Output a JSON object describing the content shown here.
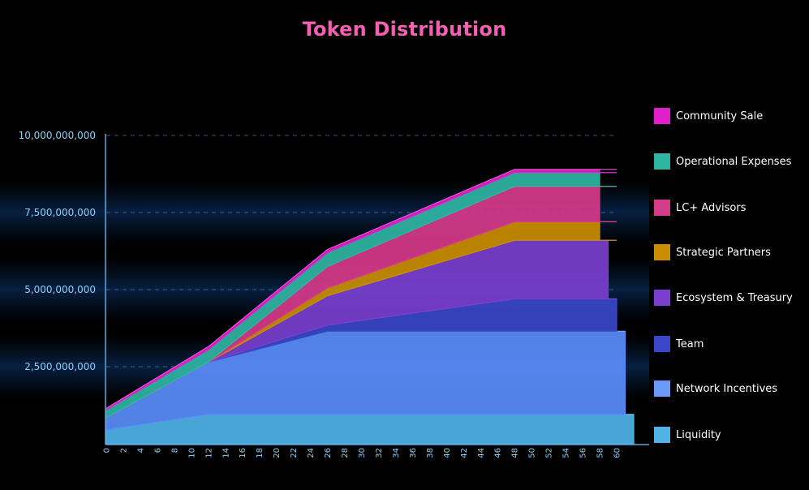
{
  "chart_data": {
    "type": "area",
    "stacked": true,
    "title": "Token Distribution",
    "xlabel": "",
    "ylabel": "",
    "ylim": [
      0,
      10000000000
    ],
    "xlim": [
      0,
      62
    ],
    "x_ticks": [
      0,
      2,
      4,
      6,
      8,
      10,
      12,
      14,
      16,
      18,
      20,
      22,
      24,
      26,
      28,
      30,
      32,
      34,
      36,
      38,
      40,
      42,
      44,
      46,
      48,
      50,
      52,
      54,
      56,
      58,
      60
    ],
    "y_ticks": [
      {
        "value": 2500000000,
        "label": "2,500,000,000"
      },
      {
        "value": 5000000000,
        "label": "5,000,000,000"
      },
      {
        "value": 7500000000,
        "label": "7,500,000,000"
      },
      {
        "value": 10000000000,
        "label": "10,000,000,000"
      }
    ],
    "grid": "horizontal dashed",
    "legend_position": "right",
    "x": [
      0,
      12,
      26,
      48,
      60
    ],
    "series": [
      {
        "name": "Liquidity",
        "color": "#4fb3e8",
        "values": [
          450000000,
          950000000,
          950000000,
          950000000,
          950000000
        ],
        "extends_to": 62
      },
      {
        "name": "Network Incentives",
        "color": "#5a8dfb",
        "values": [
          400000000,
          1700000000,
          2700000000,
          2700000000,
          2700000000
        ],
        "extends_to": 61
      },
      {
        "name": "Team",
        "color": "#3a47c8",
        "values": [
          0,
          0,
          200000000,
          1050000000,
          1050000000
        ],
        "extends_to": 60
      },
      {
        "name": "Ecosystem & Treasury",
        "color": "#7a3fcf",
        "values": [
          0,
          0,
          950000000,
          1900000000,
          1900000000
        ],
        "extends_to": 59
      },
      {
        "name": "Strategic Partners",
        "color": "#c98e00",
        "values": [
          0,
          0,
          250000000,
          600000000,
          600000000
        ],
        "extends_to": 58
      },
      {
        "name": "LC+ Advisors",
        "color": "#d63a8a",
        "values": [
          0,
          0,
          700000000,
          1150000000,
          1150000000
        ],
        "extends_to": 58
      },
      {
        "name": "Operational Expenses",
        "color": "#2fb5a3",
        "values": [
          250000000,
          400000000,
          450000000,
          450000000,
          450000000
        ],
        "extends_to": 58
      },
      {
        "name": "Community Sale",
        "color": "#e020c8",
        "values": [
          50000000,
          100000000,
          100000000,
          100000000,
          100000000
        ],
        "extends_to": 58
      }
    ]
  },
  "legend": [
    {
      "label": "Community Sale",
      "color": "#e020c8"
    },
    {
      "label": "Operational Expenses",
      "color": "#2fb5a3"
    },
    {
      "label": "LC+ Advisors",
      "color": "#d63a8a"
    },
    {
      "label": "Strategic Partners",
      "color": "#c98e00"
    },
    {
      "label": "Ecosystem & Treasury",
      "color": "#7a3fcf"
    },
    {
      "label": "Team",
      "color": "#3a47c8"
    },
    {
      "label": "Network Incentives",
      "color": "#6a98fb"
    },
    {
      "label": "Liquidity",
      "color": "#4fb3e8"
    }
  ]
}
